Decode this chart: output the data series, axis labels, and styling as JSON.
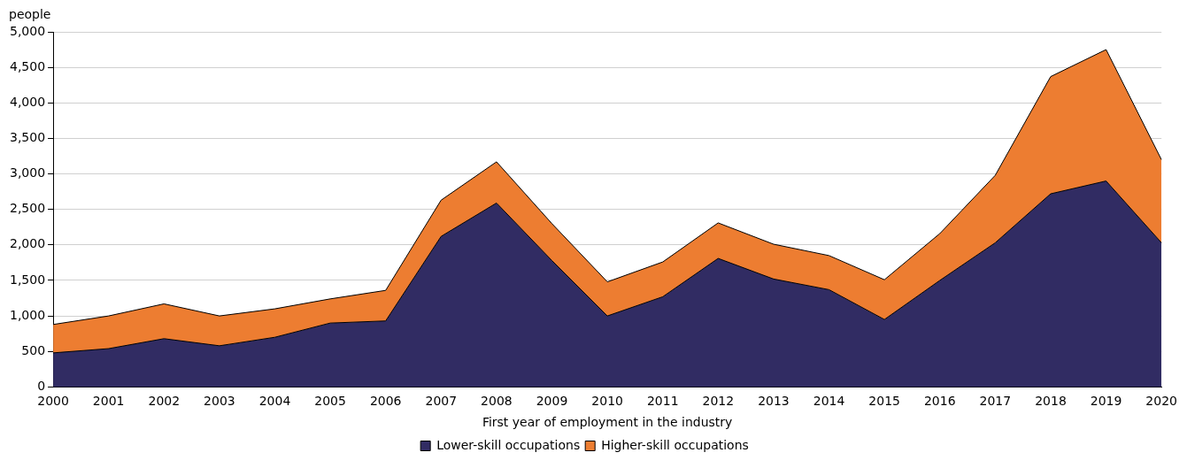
{
  "chart_data": {
    "type": "area",
    "stacked": true,
    "xlabel": "First year of employment in the industry",
    "ylabel": "people",
    "categories": [
      "2000",
      "2001",
      "2002",
      "2003",
      "2004",
      "2005",
      "2006",
      "2007",
      "2008",
      "2009",
      "2010",
      "2011",
      "2012",
      "2013",
      "2014",
      "2015",
      "2016",
      "2017",
      "2018",
      "2019",
      "2020"
    ],
    "series": [
      {
        "name": "Lower-skill occupations",
        "color": "#312c63",
        "values": [
          480,
          540,
          680,
          580,
          700,
          900,
          930,
          2120,
          2590,
          1780,
          1000,
          1270,
          1810,
          1520,
          1370,
          950,
          1500,
          2030,
          2720,
          2900,
          2030
        ]
      },
      {
        "name": "Higher-skill occupations",
        "color": "#ed7d31",
        "values": [
          400,
          460,
          490,
          420,
          400,
          340,
          430,
          510,
          580,
          520,
          480,
          490,
          500,
          490,
          480,
          560,
          660,
          950,
          1650,
          1850,
          1170
        ]
      }
    ],
    "ylim": [
      0,
      5000
    ],
    "yticks": [
      0,
      500,
      {
        "value": 1000,
        "label": "1,000"
      },
      {
        "value": 1500,
        "label": "1,500"
      },
      {
        "value": 2000,
        "label": "2,000"
      },
      {
        "value": 2500,
        "label": "2,500"
      },
      {
        "value": 3000,
        "label": "3,000"
      },
      {
        "value": 3500,
        "label": "3,500"
      },
      {
        "value": 4000,
        "label": "4,000"
      },
      {
        "value": 4500,
        "label": "4,500"
      },
      {
        "value": 5000,
        "label": "5,000"
      }
    ],
    "grid": "y",
    "legend": "bottom"
  }
}
